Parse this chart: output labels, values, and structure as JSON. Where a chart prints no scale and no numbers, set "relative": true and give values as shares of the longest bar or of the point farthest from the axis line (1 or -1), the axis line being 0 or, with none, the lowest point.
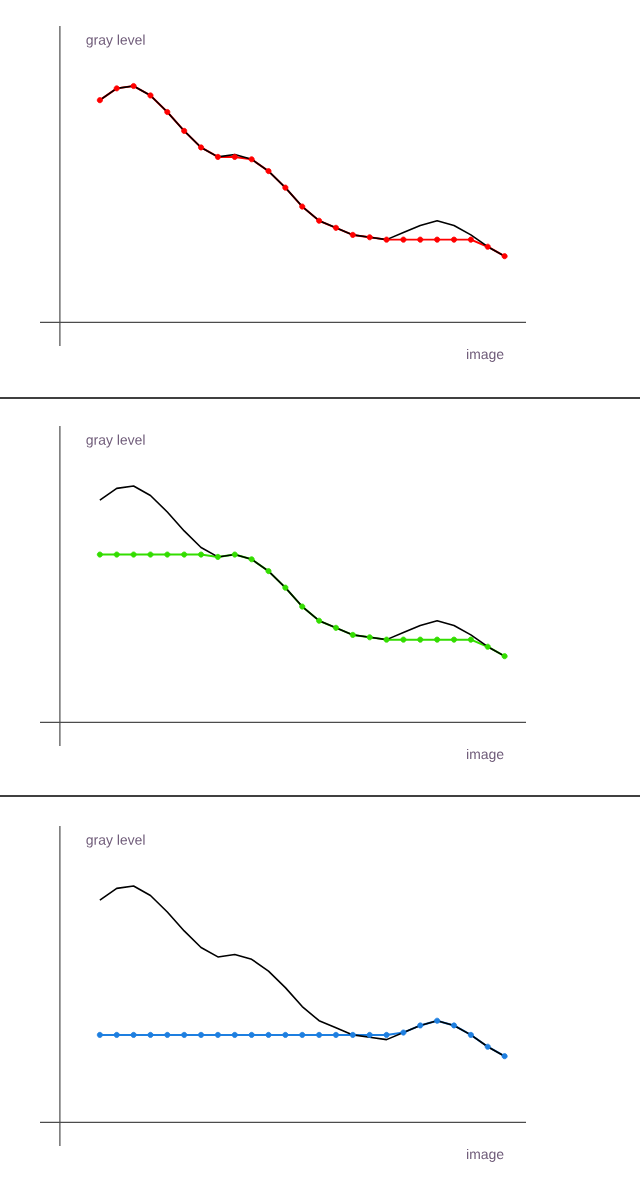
{
  "chart_data": [
    {
      "type": "line",
      "relative": true,
      "ylabel": "gray level",
      "xlabel": "image",
      "categories": [
        null,
        null,
        null,
        null,
        null,
        null,
        null,
        null,
        null,
        null,
        null,
        null,
        null,
        null,
        null,
        null,
        null,
        null,
        null,
        null,
        null,
        null,
        null,
        null,
        null
      ],
      "series": [
        {
          "color": "#000000",
          "marker": "none",
          "values": [
            0.94,
            0.99,
            1.0,
            0.96,
            0.89,
            0.81,
            0.74,
            0.7,
            0.71,
            0.69,
            0.64,
            0.57,
            0.49,
            0.43,
            0.4,
            0.37,
            0.36,
            0.35,
            0.38,
            0.41,
            0.43,
            0.41,
            0.37,
            0.32,
            0.28
          ]
        },
        {
          "color": "#ff0000",
          "marker": "circle",
          "values": [
            0.94,
            0.99,
            1.0,
            0.96,
            0.89,
            0.81,
            0.74,
            0.7,
            0.7,
            0.69,
            0.64,
            0.57,
            0.49,
            0.43,
            0.4,
            0.37,
            0.36,
            0.35,
            0.35,
            0.35,
            0.35,
            0.35,
            0.35,
            0.32,
            0.28
          ]
        }
      ]
    },
    {
      "type": "line",
      "relative": true,
      "ylabel": "gray level",
      "xlabel": "image",
      "categories": [
        null,
        null,
        null,
        null,
        null,
        null,
        null,
        null,
        null,
        null,
        null,
        null,
        null,
        null,
        null,
        null,
        null,
        null,
        null,
        null,
        null,
        null,
        null,
        null,
        null
      ],
      "series": [
        {
          "color": "#000000",
          "marker": "none",
          "values": [
            0.94,
            0.99,
            1.0,
            0.96,
            0.89,
            0.81,
            0.74,
            0.7,
            0.71,
            0.69,
            0.64,
            0.57,
            0.49,
            0.43,
            0.4,
            0.37,
            0.36,
            0.35,
            0.38,
            0.41,
            0.43,
            0.41,
            0.37,
            0.32,
            0.28
          ]
        },
        {
          "color": "#33dd00",
          "marker": "circle",
          "values": [
            0.71,
            0.71,
            0.71,
            0.71,
            0.71,
            0.71,
            0.71,
            0.7,
            0.71,
            0.69,
            0.64,
            0.57,
            0.49,
            0.43,
            0.4,
            0.37,
            0.36,
            0.35,
            0.35,
            0.35,
            0.35,
            0.35,
            0.35,
            0.32,
            0.28
          ]
        }
      ]
    },
    {
      "type": "line",
      "relative": true,
      "ylabel": "gray level",
      "xlabel": "image",
      "categories": [
        null,
        null,
        null,
        null,
        null,
        null,
        null,
        null,
        null,
        null,
        null,
        null,
        null,
        null,
        null,
        null,
        null,
        null,
        null,
        null,
        null,
        null,
        null,
        null,
        null
      ],
      "series": [
        {
          "color": "#000000",
          "marker": "none",
          "values": [
            0.94,
            0.99,
            1.0,
            0.96,
            0.89,
            0.81,
            0.74,
            0.7,
            0.71,
            0.69,
            0.64,
            0.57,
            0.49,
            0.43,
            0.4,
            0.37,
            0.36,
            0.35,
            0.38,
            0.41,
            0.43,
            0.41,
            0.37,
            0.32,
            0.28
          ]
        },
        {
          "color": "#1e7fe0",
          "marker": "circle",
          "values": [
            0.37,
            0.37,
            0.37,
            0.37,
            0.37,
            0.37,
            0.37,
            0.37,
            0.37,
            0.37,
            0.37,
            0.37,
            0.37,
            0.37,
            0.37,
            0.37,
            0.37,
            0.37,
            0.38,
            0.41,
            0.43,
            0.41,
            0.37,
            0.32,
            0.28
          ]
        }
      ]
    }
  ]
}
